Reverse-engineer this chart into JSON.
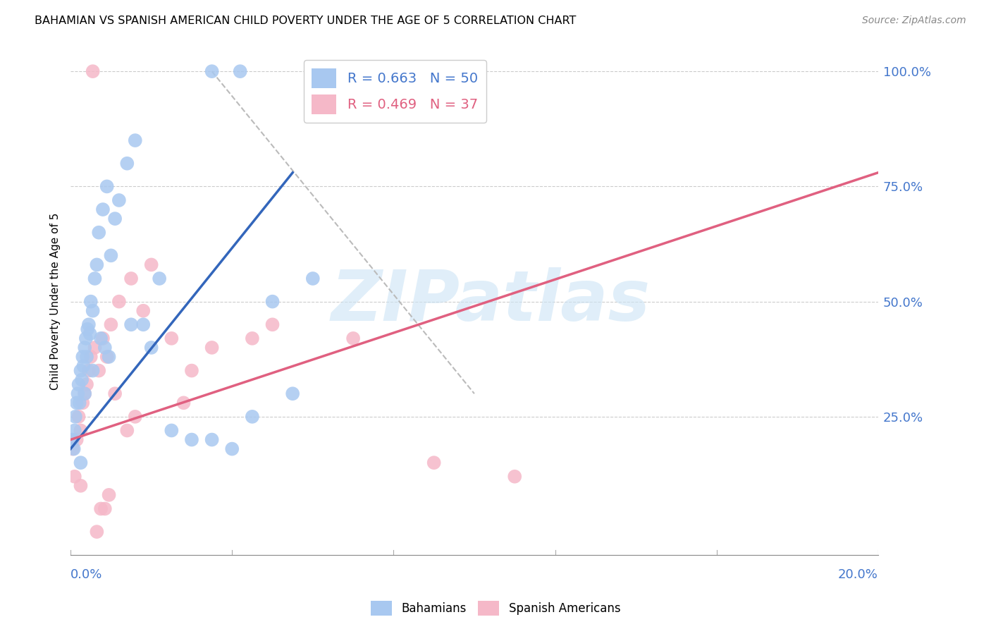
{
  "title": "BAHAMIAN VS SPANISH AMERICAN CHILD POVERTY UNDER THE AGE OF 5 CORRELATION CHART",
  "source": "Source: ZipAtlas.com",
  "ylabel": "Child Poverty Under the Age of 5",
  "watermark": "ZIPatlas",
  "bahamians_color": "#a8c8f0",
  "spanish_color": "#f5b8c8",
  "bahamian_line_color": "#3366bb",
  "spanish_line_color": "#e06080",
  "ref_line_color": "#bbbbbb",
  "legend_label1": "Bahamians",
  "legend_label2": "Spanish Americans",
  "xlim": [
    0,
    20
  ],
  "ylim": [
    -5,
    105
  ],
  "ytick_values": [
    0,
    25,
    50,
    75,
    100
  ],
  "ytick_labels": [
    "",
    "25.0%",
    "50.0%",
    "75.0%",
    "100.0%"
  ],
  "xtick_values": [
    0,
    4,
    8,
    12,
    16,
    20
  ],
  "bahamian_x": [
    0.05,
    0.08,
    0.1,
    0.12,
    0.15,
    0.18,
    0.2,
    0.22,
    0.25,
    0.28,
    0.3,
    0.32,
    0.35,
    0.38,
    0.4,
    0.42,
    0.45,
    0.48,
    0.5,
    0.55,
    0.6,
    0.65,
    0.7,
    0.8,
    0.9,
    1.0,
    1.1,
    1.2,
    1.4,
    1.6,
    1.8,
    2.0,
    2.5,
    3.0,
    3.5,
    4.0,
    4.5,
    5.0,
    5.5,
    6.0,
    3.5,
    4.2,
    2.2,
    1.5,
    0.75,
    0.85,
    0.95,
    0.55,
    0.35,
    0.25
  ],
  "bahamian_y": [
    20,
    18,
    22,
    25,
    28,
    30,
    32,
    28,
    35,
    33,
    38,
    36,
    40,
    42,
    38,
    44,
    45,
    43,
    50,
    48,
    55,
    58,
    65,
    70,
    75,
    60,
    68,
    72,
    80,
    85,
    45,
    40,
    22,
    20,
    20,
    18,
    25,
    50,
    30,
    55,
    100,
    100,
    55,
    45,
    42,
    40,
    38,
    35,
    30,
    15
  ],
  "spanish_x": [
    0.05,
    0.1,
    0.15,
    0.2,
    0.25,
    0.3,
    0.35,
    0.4,
    0.45,
    0.5,
    0.6,
    0.7,
    0.8,
    0.9,
    1.0,
    1.2,
    1.5,
    1.8,
    2.0,
    2.5,
    3.0,
    3.5,
    4.5,
    5.0,
    7.0,
    9.0,
    11.0,
    0.55,
    0.65,
    0.75,
    0.85,
    0.95,
    0.25,
    1.1,
    1.4,
    1.6,
    2.8
  ],
  "spanish_y": [
    18,
    12,
    20,
    25,
    22,
    28,
    30,
    32,
    35,
    38,
    40,
    35,
    42,
    38,
    45,
    50,
    55,
    48,
    58,
    42,
    35,
    40,
    42,
    45,
    42,
    15,
    12,
    100,
    0,
    5,
    5,
    8,
    10,
    30,
    22,
    25,
    28
  ],
  "bah_line_x0": 0.0,
  "bah_line_y0": 18,
  "bah_line_x1": 5.5,
  "bah_line_y1": 78,
  "sp_line_x0": 0.0,
  "sp_line_y0": 20,
  "sp_line_x1": 20.0,
  "sp_line_y1": 78,
  "ref_x0": 3.5,
  "ref_y0": 100,
  "ref_x1": 10.0,
  "ref_y1": 30
}
